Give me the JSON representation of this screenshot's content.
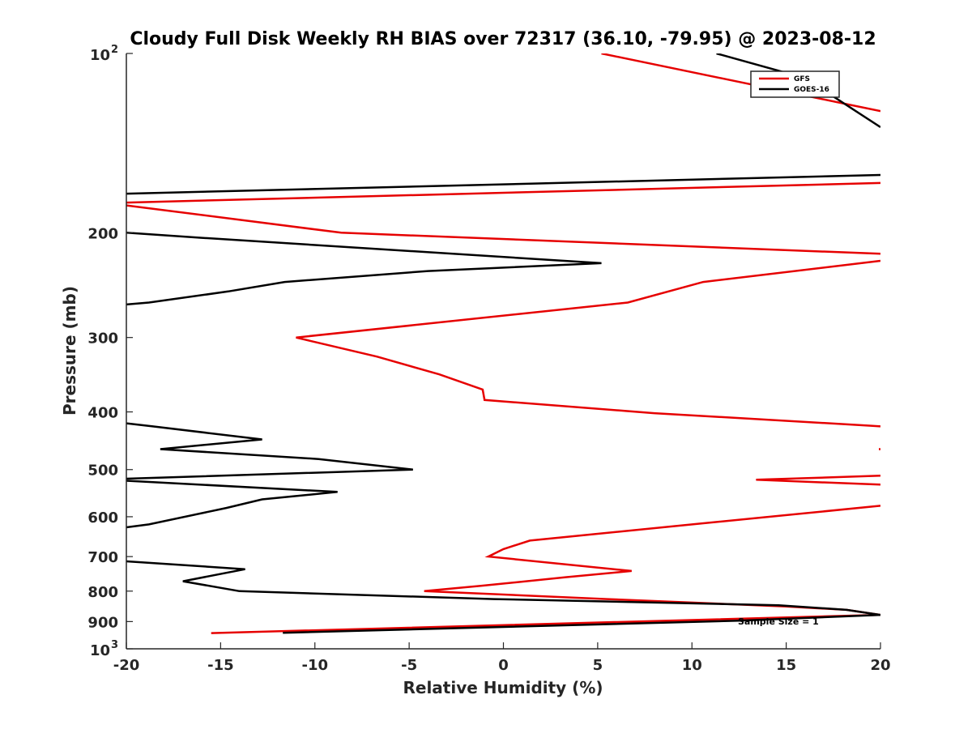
{
  "chart_data": {
    "type": "line",
    "title": "Cloudy Full Disk Weekly RH BIAS over 72317 (36.10, -79.95) @ 2023-08-12",
    "xlabel": "Relative Humidity (%)",
    "ylabel": "Pressure (mb)",
    "xlim": [
      -20,
      20
    ],
    "ylim": [
      100,
      1000
    ],
    "y_scale": "log",
    "y_reversed": true,
    "x_ticks": [
      "-20",
      "-15",
      "-10",
      "-5",
      "0",
      "5",
      "10",
      "15",
      "20"
    ],
    "y_ticks": [
      {
        "value": 100,
        "base": "10",
        "exp": "2"
      },
      {
        "value": 200,
        "label": "200"
      },
      {
        "value": 300,
        "label": "300"
      },
      {
        "value": 400,
        "label": "400"
      },
      {
        "value": 500,
        "label": "500"
      },
      {
        "value": 600,
        "label": "600"
      },
      {
        "value": 700,
        "label": "700"
      },
      {
        "value": 800,
        "label": "800"
      },
      {
        "value": 900,
        "label": "900"
      },
      {
        "value": 1000,
        "base": "10",
        "exp": "3"
      }
    ],
    "grid": false,
    "legend_position": "top-right",
    "annotation": "Sample Size = 1",
    "series": [
      {
        "name": "GFS",
        "color": "#e60000",
        "segments": [
          [
            [
              5.2,
              100
            ],
            [
              20,
              125
            ]
          ],
          [
            [
              20,
              165
            ],
            [
              -20,
              178
            ]
          ],
          [
            [
              -20,
              180
            ],
            [
              -8.6,
              200
            ],
            [
              20,
              217
            ]
          ],
          [
            [
              20,
              223
            ],
            [
              10.6,
              242
            ],
            [
              6.6,
              262
            ],
            [
              -11,
              300
            ],
            [
              -6.7,
              323
            ],
            [
              -3.4,
              346
            ],
            [
              -1.1,
              367
            ],
            [
              -1,
              382
            ],
            [
              8,
              402
            ],
            [
              19.5,
              422
            ],
            [
              20,
              423
            ]
          ],
          [
            [
              20,
              462
            ]
          ],
          [
            [
              20,
              512
            ],
            [
              13.4,
              520
            ],
            [
              20,
              530
            ]
          ],
          [
            [
              20,
              575
            ],
            [
              10.5,
              616
            ],
            [
              1.4,
              658
            ],
            [
              0,
              680
            ],
            [
              -0.8,
              700
            ],
            [
              6.8,
              740
            ],
            [
              3.3,
              758
            ],
            [
              -1.2,
              784
            ],
            [
              -4.2,
              800
            ],
            [
              5.5,
              825
            ],
            [
              15,
              849
            ],
            [
              18.2,
              860
            ],
            [
              20,
              877
            ],
            [
              -15.5,
              941
            ]
          ]
        ]
      },
      {
        "name": "GOES-16",
        "color": "#000000",
        "segments": [
          [
            [
              11.3,
              100
            ],
            [
              16,
              110
            ],
            [
              20,
              133
            ]
          ],
          [
            [
              20,
              160
            ],
            [
              -20,
              172
            ]
          ],
          [
            [
              -20,
              200
            ],
            [
              -16,
              204
            ],
            [
              5.2,
              225
            ],
            [
              -4,
              232
            ],
            [
              -11.6,
              242
            ],
            [
              -14.6,
              251
            ],
            [
              -18.8,
              262
            ],
            [
              -20,
              264
            ]
          ],
          [
            [
              -20,
              418
            ],
            [
              -18.6,
              423
            ],
            [
              -12.8,
              445
            ],
            [
              -18.2,
              462
            ],
            [
              -9.8,
              480
            ],
            [
              -4.8,
              500
            ],
            [
              -20,
              518
            ]
          ],
          [
            [
              -20,
              522
            ],
            [
              -8.8,
              545
            ],
            [
              -12.8,
              561
            ],
            [
              -14.7,
              580
            ],
            [
              -18.8,
              618
            ],
            [
              -20,
              625
            ]
          ],
          [
            [
              -20,
              713
            ],
            [
              -13.7,
              735
            ],
            [
              -17,
              770
            ],
            [
              -14,
              800
            ],
            [
              -0.5,
              825
            ],
            [
              14.6,
              845
            ],
            [
              18.2,
              860
            ],
            [
              20,
              877
            ],
            [
              12.5,
              897
            ],
            [
              -11.7,
              940
            ]
          ]
        ]
      }
    ]
  },
  "legend": {
    "gfs_label": "GFS",
    "goes_label": "GOES-16"
  }
}
